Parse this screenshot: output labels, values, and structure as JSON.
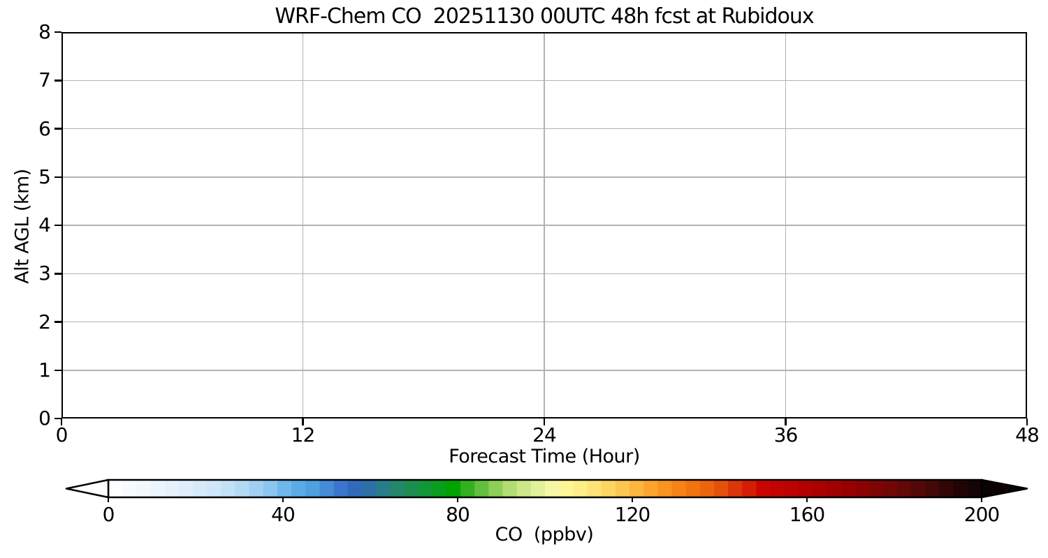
{
  "chart_data": {
    "type": "heatmap",
    "title": "WRF-Chem CO  20251130 00UTC 48h fcst at Rubidoux",
    "xlabel": "Forecast Time (Hour)",
    "ylabel": "Alt AGL (km)",
    "xlim": [
      0,
      48
    ],
    "ylim": [
      0,
      8
    ],
    "xticks": [
      0,
      12,
      24,
      36,
      48
    ],
    "yticks": [
      0,
      1,
      2,
      3,
      4,
      5,
      6,
      7,
      8
    ],
    "grid": true,
    "grid_color": "#b2b2b2",
    "spine_color": "#000000",
    "background_color": "#ffffff",
    "values": [],
    "note": "plot area is blank - no shaded CO field visible",
    "colorbar": {
      "label": "CO  (ppbv)",
      "ticks": [
        0,
        40,
        80,
        120,
        160,
        200
      ],
      "vmin": 0,
      "vmax": 200,
      "extend": "both",
      "extend_min_color": "#ffffff",
      "extend_max_color": "#0d0202",
      "segments": 62,
      "stops": [
        [
          0.0,
          "#ffffff"
        ],
        [
          0.04,
          "#f3f8fd"
        ],
        [
          0.08,
          "#e3f0fb"
        ],
        [
          0.12,
          "#d0e7f8"
        ],
        [
          0.155,
          "#b3d8f4"
        ],
        [
          0.185,
          "#8cc6f0"
        ],
        [
          0.21,
          "#61b0e9"
        ],
        [
          0.235,
          "#4d9fe0"
        ],
        [
          0.26,
          "#3f7ed3"
        ],
        [
          0.275,
          "#3468c4"
        ],
        [
          0.3,
          "#2e70a6"
        ],
        [
          0.32,
          "#27827f"
        ],
        [
          0.345,
          "#1d8d51"
        ],
        [
          0.37,
          "#0c9a2e"
        ],
        [
          0.395,
          "#00a400"
        ],
        [
          0.42,
          "#4cb731"
        ],
        [
          0.452,
          "#a6d868"
        ],
        [
          0.48,
          "#d4ea90"
        ],
        [
          0.505,
          "#f4f7a6"
        ],
        [
          0.52,
          "#fdf89b"
        ],
        [
          0.545,
          "#fdec83"
        ],
        [
          0.57,
          "#fdd965"
        ],
        [
          0.6,
          "#fdba44"
        ],
        [
          0.63,
          "#fb9a24"
        ],
        [
          0.66,
          "#f57c10"
        ],
        [
          0.695,
          "#e95c0d"
        ],
        [
          0.72,
          "#d93206"
        ],
        [
          0.75,
          "#cb0402"
        ],
        [
          0.8,
          "#b20000"
        ],
        [
          0.85,
          "#960000"
        ],
        [
          0.9,
          "#6e0707"
        ],
        [
          0.94,
          "#470808"
        ],
        [
          0.97,
          "#260505"
        ],
        [
          1.0,
          "#100202"
        ]
      ]
    }
  }
}
